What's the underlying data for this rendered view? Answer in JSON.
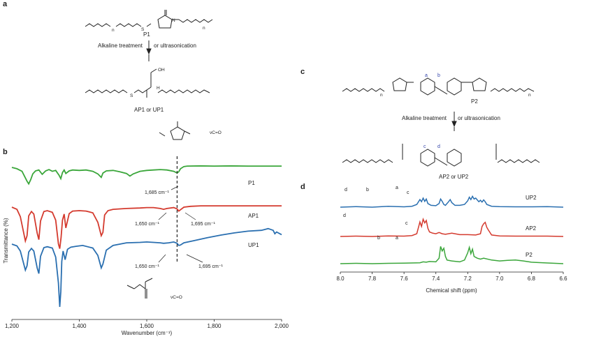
{
  "panel_labels": {
    "a": "a",
    "b": "b",
    "c": "c",
    "d": "d"
  },
  "scheme_a": {
    "reactant": "P1",
    "condition_1": "Alkaline treatment",
    "condition_2": "or ultrasonication",
    "product": "AP1 or UP1",
    "repeat_n": "n",
    "atom_S": "S",
    "atom_N": "N",
    "atom_O": "O",
    "acid": "OH",
    "amide": "H"
  },
  "scheme_c": {
    "reactant": "P2",
    "condition_1": "Alkaline treatment",
    "condition_2": "or ultrasonication",
    "product": "AP2 or UP2",
    "proton_labels": [
      "a",
      "b",
      "c",
      "d"
    ],
    "repeat_n": "n"
  },
  "inset_top": {
    "label": "νC=O"
  },
  "inset_bottom": {
    "label": "νC=O"
  },
  "colors": {
    "P": "#3aa63a",
    "A": "#d43a2e",
    "U": "#2a6fb0"
  },
  "chart_data": [
    {
      "type": "line",
      "panel": "b",
      "xlabel": "Wavenumber (cm⁻¹)",
      "ylabel": "Transmittance (%)",
      "xlim": [
        1200,
        2000
      ],
      "xticks": [
        1200,
        1400,
        1600,
        1800,
        2000
      ],
      "xtick_labels": [
        "1,200",
        "1,400",
        "1,600",
        "1,800",
        "2,000"
      ],
      "dashed_line_x": 1690,
      "series": [
        {
          "name": "P1",
          "color": "#3aa63a",
          "x": [
            1200,
            1215,
            1230,
            1245,
            1250,
            1256,
            1262,
            1270,
            1280,
            1290,
            1300,
            1310,
            1320,
            1330,
            1340,
            1345,
            1350,
            1355,
            1360,
            1370,
            1380,
            1400,
            1420,
            1440,
            1455,
            1465,
            1470,
            1480,
            1500,
            1520,
            1540,
            1550,
            1560,
            1580,
            1600,
            1620,
            1640,
            1660,
            1680,
            1690,
            1695,
            1700,
            1710,
            1720,
            1760,
            1800,
            1850,
            1900,
            1950,
            2000
          ],
          "y": [
            0.0,
            -0.3,
            -0.9,
            -3.2,
            -3.8,
            -2.8,
            -1.5,
            -0.8,
            -0.6,
            -1.6,
            -0.8,
            -0.5,
            -0.9,
            -0.7,
            -1.8,
            -2.6,
            -1.2,
            -0.6,
            -1.4,
            -0.8,
            -0.6,
            -0.7,
            -0.6,
            -0.9,
            -1.5,
            -2.3,
            -1.3,
            -0.8,
            -0.7,
            -1.0,
            -1.4,
            -2.0,
            -1.5,
            -0.9,
            -0.7,
            -0.6,
            -0.5,
            -0.6,
            -0.9,
            -1.3,
            -1.0,
            -0.3,
            0.2,
            0.3,
            0.35,
            0.3,
            0.35,
            0.3,
            0.3,
            0.3
          ]
        },
        {
          "name": "AP1",
          "color": "#d43a2e",
          "x": [
            1200,
            1215,
            1225,
            1240,
            1245,
            1250,
            1258,
            1265,
            1275,
            1280,
            1285,
            1295,
            1305,
            1320,
            1330,
            1338,
            1342,
            1346,
            1350,
            1355,
            1360,
            1370,
            1380,
            1400,
            1420,
            1440,
            1455,
            1465,
            1470,
            1475,
            1485,
            1500,
            1540,
            1580,
            1600,
            1620,
            1640,
            1650,
            1660,
            1680,
            1690,
            1695,
            1700,
            1710,
            1730,
            1760,
            1800,
            1850,
            1900,
            1950,
            2000
          ],
          "y": [
            0.0,
            -0.5,
            -2.2,
            -7.8,
            -6.6,
            -2.0,
            -1.0,
            -1.6,
            -6.0,
            -7.5,
            -3.2,
            -1.0,
            -0.8,
            -1.2,
            -3.0,
            -8.5,
            -9.6,
            -7.0,
            -3.0,
            -1.6,
            -4.8,
            -1.5,
            -0.9,
            -0.8,
            -0.9,
            -1.3,
            -3.5,
            -6.6,
            -5.8,
            -1.8,
            -0.8,
            -0.5,
            -0.3,
            -0.2,
            -0.1,
            -0.1,
            -0.3,
            -0.5,
            -0.3,
            -0.1,
            -0.4,
            -0.9,
            -0.6,
            0.0,
            0.2,
            0.3,
            0.3,
            0.3,
            0.3,
            0.3,
            0.3
          ]
        },
        {
          "name": "UP1",
          "color": "#2a6fb0",
          "x": [
            1200,
            1215,
            1225,
            1240,
            1245,
            1250,
            1258,
            1265,
            1275,
            1280,
            1285,
            1295,
            1305,
            1320,
            1330,
            1338,
            1342,
            1345,
            1348,
            1352,
            1358,
            1365,
            1375,
            1390,
            1410,
            1440,
            1455,
            1465,
            1470,
            1480,
            1500,
            1540,
            1580,
            1600,
            1620,
            1640,
            1650,
            1665,
            1680,
            1690,
            1695,
            1700,
            1710,
            1740,
            1780,
            1820,
            1860,
            1900,
            1940,
            1960,
            1975,
            1980,
            1985,
            2000
          ],
          "y": [
            0.0,
            -0.4,
            -1.6,
            -6.0,
            -5.0,
            -1.8,
            -1.0,
            -1.6,
            -5.5,
            -6.8,
            -2.8,
            -0.8,
            -0.6,
            -0.9,
            -3.0,
            -9.0,
            -14.5,
            -11.0,
            -4.0,
            -1.6,
            -3.6,
            -1.2,
            -0.7,
            -0.5,
            -0.3,
            -0.9,
            -2.6,
            -5.5,
            -4.6,
            -1.4,
            -0.3,
            0.3,
            0.4,
            0.5,
            0.4,
            0.3,
            0.2,
            0.3,
            0.5,
            0.2,
            -0.3,
            -0.2,
            0.3,
            0.8,
            1.5,
            2.1,
            2.6,
            3.0,
            3.2,
            3.6,
            3.2,
            2.4,
            2.8,
            2.2
          ]
        }
      ],
      "annotations": [
        {
          "series": "P1",
          "text": "1,685 cm⁻¹"
        },
        {
          "series": "AP1",
          "text": "1,650 cm⁻¹"
        },
        {
          "series": "AP1",
          "text": "1,695 cm⁻¹"
        },
        {
          "series": "UP1",
          "text": "1,650 cm⁻¹"
        },
        {
          "series": "UP1",
          "text": "1,695 cm⁻¹"
        }
      ]
    },
    {
      "type": "line",
      "panel": "d",
      "xlabel": "Chemical shift (ppm)",
      "xlim": [
        8.0,
        6.6
      ],
      "xticks": [
        8.0,
        7.8,
        7.6,
        7.4,
        7.2,
        7.0,
        6.8,
        6.6
      ],
      "xtick_labels": [
        "8.0",
        "7.8",
        "7.6",
        "7.4",
        "7.2",
        "7.0",
        "6.8",
        "6.6"
      ],
      "series": [
        {
          "name": "UP2",
          "color": "#2a6fb0",
          "x": [
            8.0,
            7.9,
            7.8,
            7.7,
            7.6,
            7.55,
            7.52,
            7.5,
            7.49,
            7.48,
            7.47,
            7.46,
            7.45,
            7.43,
            7.4,
            7.38,
            7.37,
            7.36,
            7.35,
            7.34,
            7.32,
            7.31,
            7.3,
            7.28,
            7.25,
            7.22,
            7.2,
            7.19,
            7.18,
            7.17,
            7.16,
            7.15,
            7.13,
            7.12,
            7.11,
            7.1,
            7.09,
            7.08,
            7.05,
            7.0,
            6.9,
            6.8,
            6.7,
            6.6
          ],
          "y": [
            0.0,
            0.03,
            0.0,
            0.05,
            0.02,
            0.05,
            0.15,
            0.42,
            0.3,
            0.5,
            0.32,
            0.45,
            0.2,
            0.1,
            0.08,
            0.2,
            0.45,
            0.32,
            0.15,
            0.1,
            0.3,
            0.42,
            0.25,
            0.1,
            0.1,
            0.15,
            0.35,
            0.55,
            0.42,
            0.6,
            0.45,
            0.5,
            0.3,
            0.38,
            0.28,
            0.4,
            0.3,
            0.15,
            0.05,
            0.03,
            0.02,
            0.02,
            0.03,
            0.0
          ]
        },
        {
          "name": "AP2",
          "color": "#d43a2e",
          "x": [
            8.0,
            7.9,
            7.8,
            7.7,
            7.6,
            7.55,
            7.52,
            7.5,
            7.49,
            7.48,
            7.47,
            7.46,
            7.45,
            7.44,
            7.42,
            7.4,
            7.38,
            7.36,
            7.34,
            7.3,
            7.25,
            7.2,
            7.15,
            7.12,
            7.11,
            7.1,
            7.09,
            7.08,
            7.07,
            7.05,
            7.0,
            6.9,
            6.8,
            6.7,
            6.6
          ],
          "y": [
            0.0,
            0.02,
            0.0,
            0.03,
            0.02,
            0.05,
            0.15,
            0.8,
            0.55,
            0.95,
            0.75,
            0.88,
            0.45,
            0.25,
            0.18,
            0.15,
            0.22,
            0.15,
            0.12,
            0.18,
            0.1,
            0.1,
            0.08,
            0.15,
            0.55,
            0.7,
            0.78,
            0.5,
            0.35,
            0.08,
            0.03,
            0.02,
            0.02,
            0.02,
            0.0
          ]
        },
        {
          "name": "P2",
          "color": "#3aa63a",
          "x": [
            8.0,
            7.9,
            7.8,
            7.7,
            7.6,
            7.5,
            7.48,
            7.46,
            7.44,
            7.4,
            7.38,
            7.37,
            7.36,
            7.35,
            7.34,
            7.33,
            7.3,
            7.25,
            7.22,
            7.2,
            7.19,
            7.18,
            7.17,
            7.16,
            7.14,
            7.12,
            7.1,
            7.05,
            7.0,
            6.95,
            6.9,
            6.85,
            6.8,
            6.7,
            6.6
          ],
          "y": [
            0.0,
            0.02,
            0.0,
            0.02,
            0.03,
            0.05,
            0.1,
            0.08,
            0.12,
            0.1,
            0.3,
            0.95,
            0.7,
            0.85,
            0.4,
            0.2,
            0.15,
            0.1,
            0.2,
            0.6,
            0.9,
            0.55,
            0.8,
            0.4,
            0.3,
            0.25,
            0.3,
            0.2,
            0.15,
            0.18,
            0.2,
            0.15,
            0.08,
            0.04,
            0.0
          ]
        }
      ],
      "peak_labels": [
        {
          "series": "UP2",
          "labels": [
            "d",
            "b",
            "a",
            "c"
          ]
        },
        {
          "series": "AP2",
          "labels": [
            "d",
            "c"
          ]
        },
        {
          "series": "P2",
          "labels": [
            "b",
            "a"
          ]
        }
      ]
    }
  ]
}
